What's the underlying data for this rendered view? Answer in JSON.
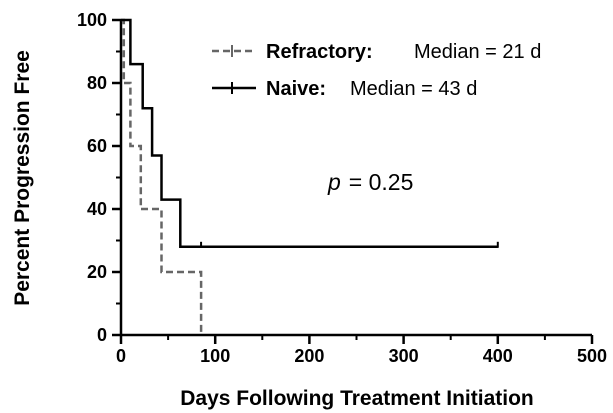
{
  "chart_data": {
    "type": "line",
    "xlabel": "Days Following Treatment Initiation",
    "ylabel": "Percent Progression Free",
    "xlim": [
      0,
      500
    ],
    "ylim": [
      0,
      100
    ],
    "x_ticks": [
      0,
      100,
      200,
      300,
      400,
      500
    ],
    "y_ticks": [
      0,
      20,
      40,
      60,
      80,
      100
    ],
    "grid": false,
    "legend_position": "top-right",
    "series": [
      {
        "name": "Refractory",
        "legend_suffix": "Median = 21  d",
        "style": "dashed",
        "color": "#666666",
        "steps": [
          [
            0,
            100
          ],
          [
            3,
            100
          ],
          [
            3,
            80
          ],
          [
            10,
            80
          ],
          [
            10,
            60
          ],
          [
            21,
            60
          ],
          [
            21,
            40
          ],
          [
            43,
            40
          ],
          [
            43,
            20
          ],
          [
            85,
            20
          ],
          [
            85,
            0
          ]
        ]
      },
      {
        "name": "Naive",
        "legend_suffix": "Median = 43 d",
        "style": "solid",
        "color": "#000000",
        "steps": [
          [
            0,
            100
          ],
          [
            10,
            100
          ],
          [
            10,
            86
          ],
          [
            23,
            86
          ],
          [
            23,
            72
          ],
          [
            33,
            72
          ],
          [
            33,
            57
          ],
          [
            43,
            57
          ],
          [
            43,
            43
          ],
          [
            63,
            43
          ],
          [
            63,
            28
          ],
          [
            400,
            28
          ]
        ],
        "censored": [
          [
            85,
            28
          ],
          [
            400,
            28
          ]
        ]
      }
    ],
    "annotation": {
      "label": "p",
      "value": "= 0.25"
    }
  }
}
